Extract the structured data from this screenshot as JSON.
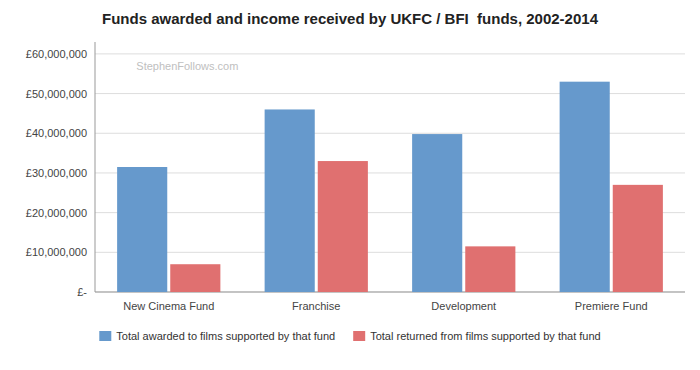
{
  "chart_data": {
    "type": "bar",
    "title": "Funds awarded and income received by UKFC / BFI  funds, 2002-2014",
    "annotations": [
      {
        "text": "StephenFollows.com"
      }
    ],
    "categories": [
      "New Cinema Fund",
      "Franchise",
      "Development",
      "Premiere Fund"
    ],
    "series": [
      {
        "name": "Total awarded to films supported by that fund",
        "color": "#6699CC",
        "values": [
          31500000,
          46000000,
          39800000,
          53000000
        ]
      },
      {
        "name": "Total returned from films supported by that fund",
        "color": "#E07070",
        "values": [
          7000000,
          33000000,
          11500000,
          27000000
        ]
      }
    ],
    "ylim": [
      0,
      63000000
    ],
    "yticks": [
      {
        "value": 0,
        "label": "£-"
      },
      {
        "value": 10000000,
        "label": "£10,000,000"
      },
      {
        "value": 20000000,
        "label": "£20,000,000"
      },
      {
        "value": 30000000,
        "label": "£30,000,000"
      },
      {
        "value": 40000000,
        "label": "£40,000,000"
      },
      {
        "value": 50000000,
        "label": "£50,000,000"
      },
      {
        "value": 60000000,
        "label": "£60,000,000"
      }
    ],
    "grid": true,
    "legend": "bottom"
  }
}
